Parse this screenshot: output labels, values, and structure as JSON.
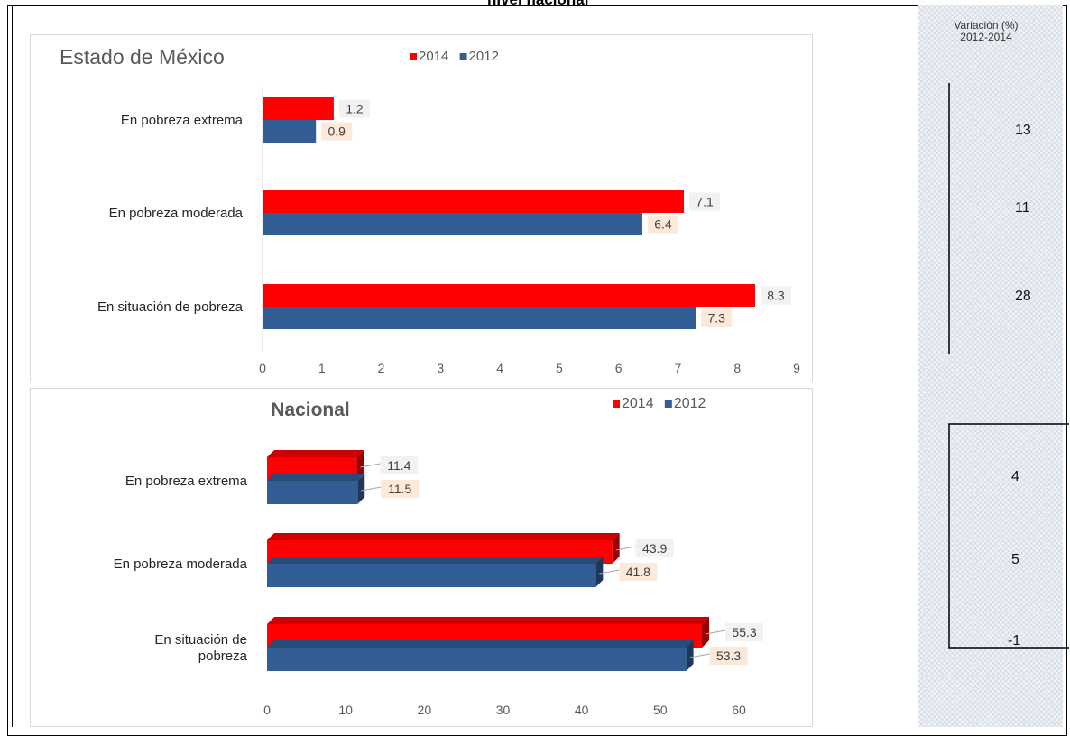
{
  "page_title": "nivel nacional",
  "variation": {
    "header": "Variación (%) 2012-2014",
    "values_top": [
      "13",
      "11",
      "28"
    ],
    "values_bottom": [
      "4",
      "5",
      "-1"
    ]
  },
  "colors": {
    "series_2014": "#ff0000",
    "series_2012": "#335e95",
    "label_2014_bg": "#f2f2f2",
    "label_2012_bg": "#fce9d9"
  },
  "chart_data": [
    {
      "type": "bar",
      "orientation": "horizontal",
      "title": "Estado de México",
      "categories": [
        "En pobreza extrema",
        "En pobreza moderada",
        "En situación de pobreza"
      ],
      "series": [
        {
          "name": "2014",
          "values": [
            1.2,
            7.1,
            8.3
          ]
        },
        {
          "name": "2012",
          "values": [
            0.9,
            6.4,
            7.3
          ]
        }
      ],
      "xlim": [
        0,
        9
      ],
      "xticks": [
        "0",
        "1",
        "2",
        "3",
        "4",
        "5",
        "6",
        "7",
        "8",
        "9"
      ],
      "legend": "top"
    },
    {
      "type": "bar",
      "orientation": "horizontal",
      "style": "3d",
      "title": "Nacional",
      "categories": [
        "En pobreza extrema",
        "En pobreza moderada",
        "En situación de pobreza"
      ],
      "series": [
        {
          "name": "2014",
          "values": [
            11.4,
            43.9,
            55.3
          ]
        },
        {
          "name": "2012",
          "values": [
            11.5,
            41.8,
            53.3
          ]
        }
      ],
      "xlim": [
        0,
        60
      ],
      "xticks": [
        "0",
        "10",
        "20",
        "30",
        "40",
        "50",
        "60"
      ],
      "legend": "top-right"
    }
  ]
}
